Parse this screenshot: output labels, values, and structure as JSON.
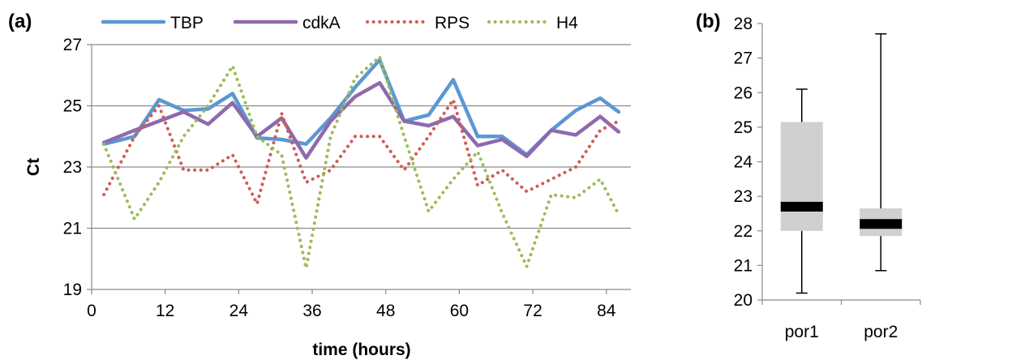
{
  "chart_data": [
    {
      "type": "line",
      "panel_label": "(a)",
      "xlabel": "time (hours)",
      "ylabel": "Ct",
      "xlim": [
        0,
        88
      ],
      "ylim": [
        19,
        27
      ],
      "x_ticks": [
        "0",
        "12",
        "24",
        "36",
        "48",
        "60",
        "72",
        "84"
      ],
      "x_tick_values": [
        0,
        12,
        24,
        36,
        48,
        60,
        72,
        84
      ],
      "y_ticks": [
        "19",
        "21",
        "23",
        "25",
        "27"
      ],
      "y_tick_values": [
        19,
        21,
        23,
        25,
        27
      ],
      "grid": "horizontal",
      "legend_position": "top",
      "x": [
        2,
        7,
        11,
        15,
        19,
        23,
        27,
        31,
        35,
        39,
        43,
        47,
        51,
        55,
        59,
        63,
        67,
        71,
        75,
        79,
        83,
        86
      ],
      "series": [
        {
          "name": "TBP",
          "style": "solid",
          "color": "#5b97d2",
          "values": [
            23.75,
            24.0,
            25.2,
            24.85,
            24.9,
            25.4,
            23.95,
            23.9,
            23.75,
            24.6,
            25.6,
            26.5,
            24.5,
            24.7,
            25.85,
            24.0,
            24.0,
            23.4,
            24.2,
            24.85,
            25.25,
            24.8
          ]
        },
        {
          "name": "cdkA",
          "style": "solid",
          "color": "#8e6aad",
          "values": [
            23.8,
            24.2,
            24.5,
            24.8,
            24.4,
            25.1,
            24.0,
            24.6,
            23.3,
            24.5,
            25.3,
            25.75,
            24.5,
            24.35,
            24.65,
            23.7,
            23.9,
            23.35,
            24.2,
            24.05,
            24.65,
            24.15
          ]
        },
        {
          "name": "RPS",
          "style": "dotted",
          "color": "#d05b52",
          "values": [
            22.1,
            24.0,
            25.0,
            22.9,
            22.9,
            23.4,
            21.8,
            24.75,
            22.5,
            22.9,
            24.0,
            24.0,
            22.9,
            24.0,
            25.2,
            22.4,
            22.9,
            22.2,
            22.6,
            23.0,
            24.2,
            24.5
          ]
        },
        {
          "name": "H4",
          "style": "dotted",
          "color": "#9bbb59",
          "values": [
            23.75,
            21.3,
            22.5,
            24.0,
            25.0,
            26.3,
            24.0,
            23.4,
            19.7,
            24.0,
            25.9,
            26.6,
            24.0,
            21.55,
            22.6,
            23.5,
            21.5,
            19.75,
            22.1,
            22.0,
            22.6,
            21.45
          ]
        }
      ]
    },
    {
      "type": "box",
      "panel_label": "(b)",
      "ylim": [
        20,
        28
      ],
      "y_ticks": [
        "20",
        "21",
        "22",
        "23",
        "24",
        "25",
        "26",
        "27",
        "28"
      ],
      "y_tick_values": [
        20,
        21,
        22,
        23,
        24,
        25,
        26,
        27,
        28
      ],
      "categories": [
        "por1",
        "por2"
      ],
      "boxes": [
        {
          "min": 20.2,
          "q1": 22.0,
          "median": 22.7,
          "q3": 25.15,
          "max": 26.1
        },
        {
          "min": 20.85,
          "q1": 21.85,
          "median": 22.2,
          "q3": 22.65,
          "max": 27.7
        }
      ],
      "colors": {
        "box": "#d0d0d0",
        "median": "#000000",
        "whisker": "#000000"
      }
    }
  ]
}
